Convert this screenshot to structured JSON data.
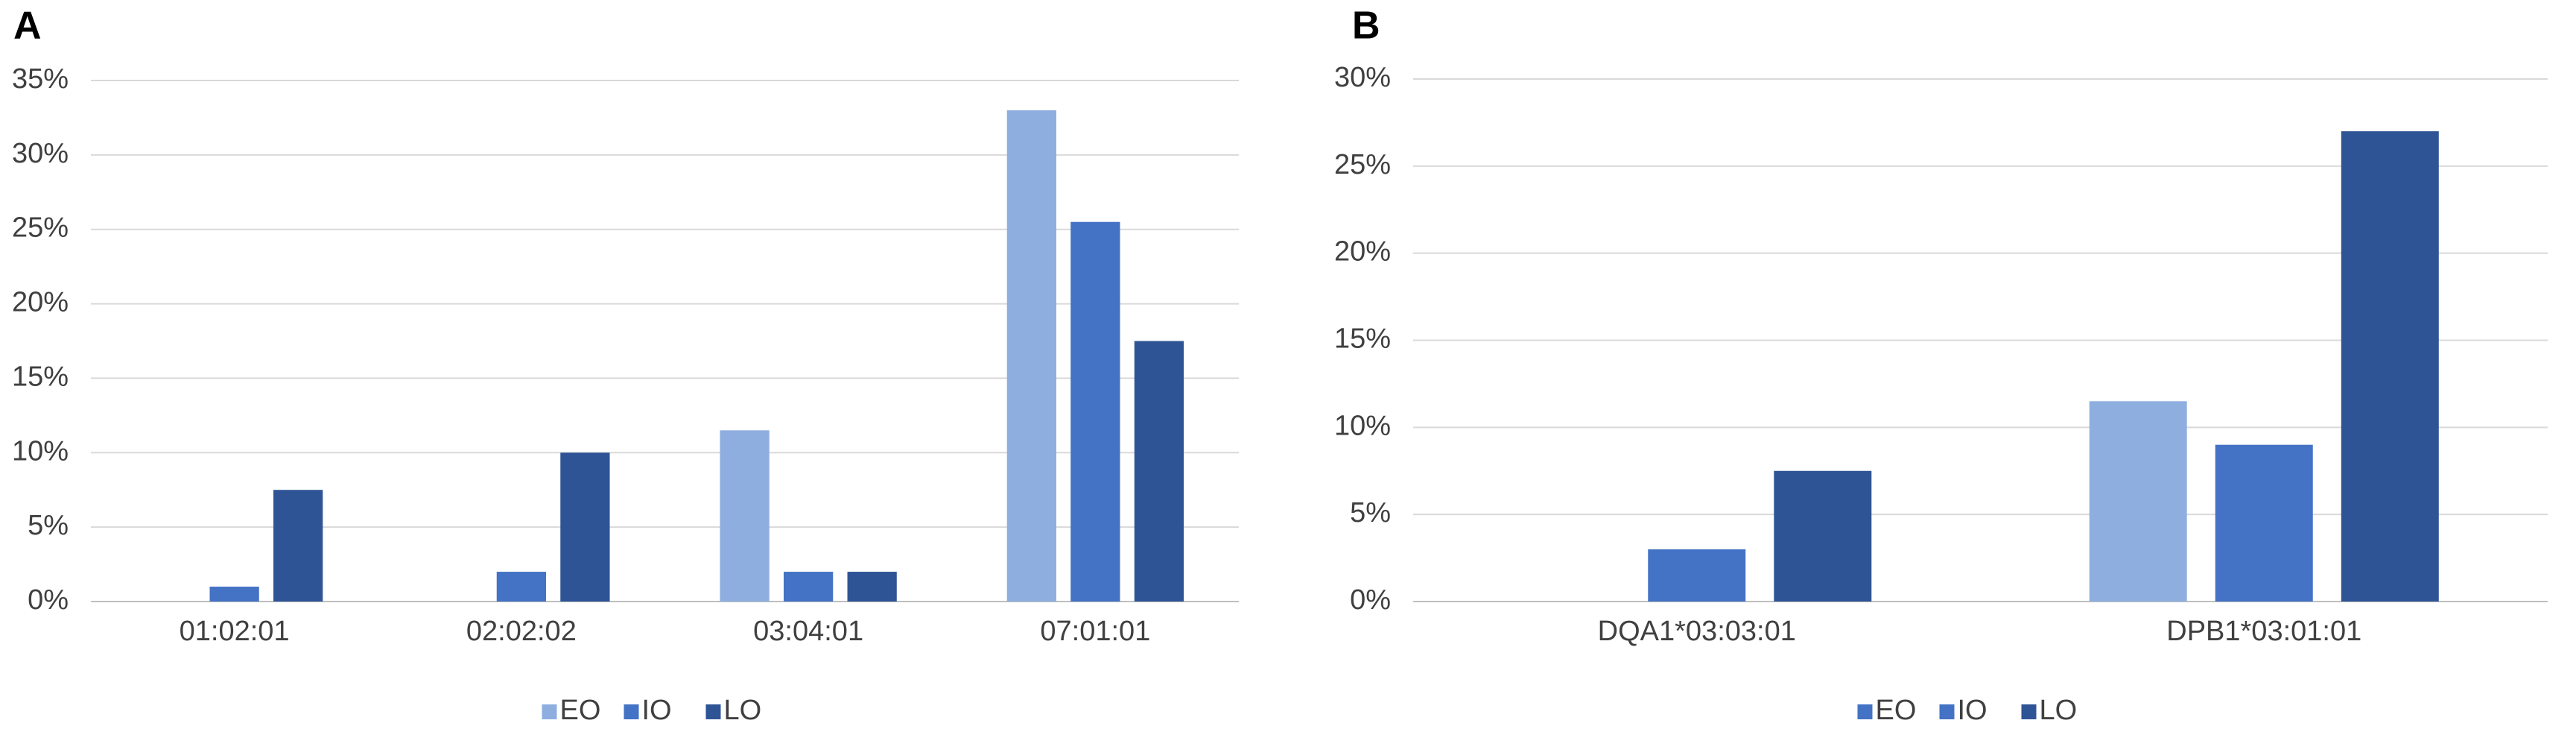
{
  "chart_data": [
    {
      "type": "bar",
      "panel_label": "A",
      "categories": [
        "01:02:01",
        "02:02:02",
        "03:04:01",
        "07:01:01"
      ],
      "series": [
        {
          "name": "EO",
          "color": "#8FAEE0",
          "values": [
            0,
            0,
            11.5,
            33
          ]
        },
        {
          "name": "IO",
          "color": "#4472C4",
          "values": [
            1,
            2,
            2,
            25.5
          ]
        },
        {
          "name": "LO",
          "color": "#2E5496",
          "values": [
            7.5,
            10,
            2,
            17.5
          ]
        }
      ],
      "ylim": [
        0,
        35
      ],
      "yticks": [
        {
          "value": 0,
          "label": "0%"
        },
        {
          "value": 5,
          "label": "5%"
        },
        {
          "value": 10,
          "label": "10%"
        },
        {
          "value": 15,
          "label": "15%"
        },
        {
          "value": 20,
          "label": "20%"
        },
        {
          "value": 25,
          "label": "25%"
        },
        {
          "value": 30,
          "label": "30%"
        },
        {
          "value": 35,
          "label": "35%"
        }
      ],
      "grid": true,
      "legend": "bottom"
    },
    {
      "type": "bar",
      "panel_label": "B",
      "categories": [
        "DQA1*03:03:01",
        "DPB1*03:01:01"
      ],
      "series": [
        {
          "name": "EO",
          "color": "#8FAEE0",
          "legend_color": "#4472C4",
          "values": [
            0,
            11.5
          ]
        },
        {
          "name": "IO",
          "color": "#4472C4",
          "values": [
            3,
            9
          ]
        },
        {
          "name": "LO",
          "color": "#2E5496",
          "values": [
            7.5,
            27
          ]
        }
      ],
      "ylim": [
        0,
        30
      ],
      "yticks": [
        {
          "value": 0,
          "label": "0%"
        },
        {
          "value": 5,
          "label": "5%"
        },
        {
          "value": 10,
          "label": "10%"
        },
        {
          "value": 15,
          "label": "15%"
        },
        {
          "value": 20,
          "label": "20%"
        },
        {
          "value": 25,
          "label": "25%"
        },
        {
          "value": 30,
          "label": "30%"
        }
      ],
      "grid": true,
      "legend": "bottom"
    }
  ]
}
